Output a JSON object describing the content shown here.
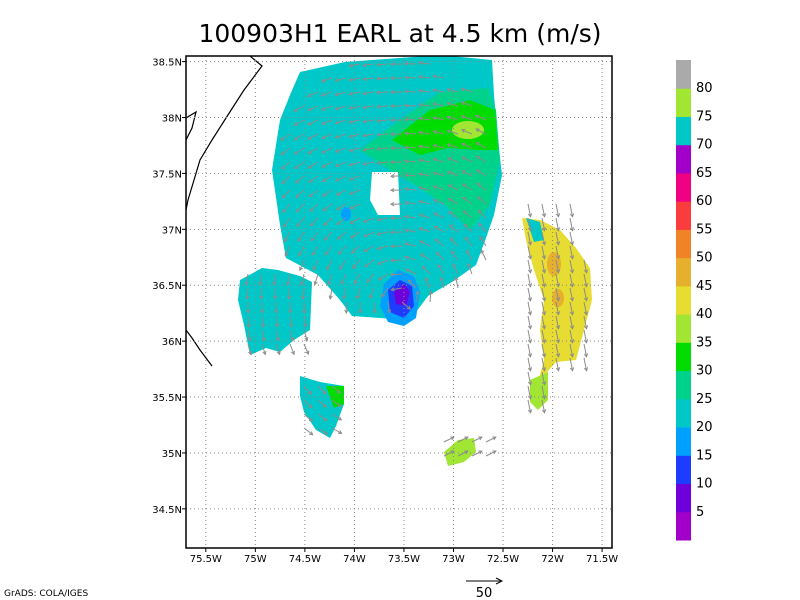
{
  "chart_data": {
    "type": "heatmap",
    "title": "100903H1 EARL at 4.5 km (m/s)",
    "x_ticks": [
      "75.5W",
      "75W",
      "74.5W",
      "74W",
      "73.5W",
      "73W",
      "72.5W",
      "72W",
      "71.5W"
    ],
    "y_ticks": [
      "34.5N",
      "35N",
      "35.5N",
      "36N",
      "36.5N",
      "37N",
      "37.5N",
      "38N",
      "38.5N"
    ],
    "x_range": [
      -75.7,
      -71.4
    ],
    "y_range": [
      34.15,
      38.55
    ],
    "grid": true,
    "colorbar": {
      "labels": [
        "5",
        "10",
        "15",
        "20",
        "25",
        "30",
        "35",
        "40",
        "45",
        "50",
        "55",
        "60",
        "65",
        "70",
        "75",
        "80"
      ],
      "colors": [
        "#a000c8",
        "#6e00dc",
        "#1e3cff",
        "#00a0ff",
        "#00c8c8",
        "#00d28c",
        "#00dc00",
        "#a0e632",
        "#e6dc32",
        "#e6af2d",
        "#f08228",
        "#fa3c3c",
        "#f00082",
        "#a000c8",
        "#00c8c8",
        "#a0e632",
        "#aaaaaa"
      ]
    },
    "vector_reference": {
      "label": "50",
      "value": 50
    },
    "storm_center": {
      "lon": -73.5,
      "lat": 36.37
    }
  },
  "credit": "GrADS: COLA/IGES"
}
